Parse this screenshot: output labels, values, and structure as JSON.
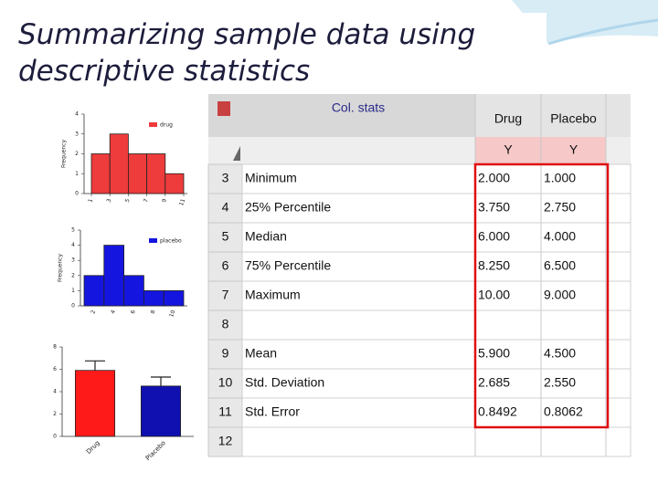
{
  "title": "Summarizing sample data using descriptive statistics",
  "charts": [
    {
      "type": "histogram",
      "y_label": "Frequency",
      "legend": "drug",
      "color": "#ee3b3b",
      "bins": [
        1,
        3,
        5,
        7,
        9,
        11
      ],
      "values": [
        2,
        3,
        2,
        2,
        1
      ],
      "xticks": [
        1,
        3,
        5,
        7,
        9,
        11
      ],
      "xlim": [
        1,
        11
      ],
      "ylim": [
        0,
        4
      ],
      "yticks": [
        0,
        1,
        2,
        3,
        4
      ]
    },
    {
      "type": "bar",
      "y_label": "Frequency",
      "legend": "placebo",
      "color": "#1515e0",
      "categories": [
        "2",
        "4",
        "6",
        "8",
        "10"
      ],
      "values": [
        2,
        4,
        2,
        1,
        1
      ],
      "ylim": [
        0,
        5
      ],
      "yticks": [
        0,
        1,
        2,
        3,
        4,
        5
      ]
    },
    {
      "type": "errorbar",
      "categories": [
        "Drug",
        "Placebo"
      ],
      "colors": [
        "#ff1a1a",
        "#1010b0"
      ],
      "values": [
        5.9,
        4.5
      ],
      "errors": [
        0.8492,
        0.8062
      ],
      "ylim": [
        0,
        8
      ],
      "yticks": [
        0,
        2,
        4,
        6,
        8
      ]
    }
  ],
  "table": {
    "title": "Col. stats",
    "columns": [
      "Drug",
      "Placebo"
    ],
    "subheaders": [
      "Y",
      "Y"
    ],
    "rows": [
      {
        "number": "3",
        "label": "Minimum",
        "drug": "2.000",
        "placebo": "1.000"
      },
      {
        "number": "4",
        "label": "25% Percentile",
        "drug": "3.750",
        "placebo": "2.750"
      },
      {
        "number": "5",
        "label": "Median",
        "drug": "6.000",
        "placebo": "4.000"
      },
      {
        "number": "6",
        "label": "75% Percentile",
        "drug": "8.250",
        "placebo": "6.500"
      },
      {
        "number": "7",
        "label": "Maximum",
        "drug": "10.00",
        "placebo": "9.000"
      },
      {
        "number": "8"
      },
      {
        "number": "9",
        "label": "Mean",
        "drug": "5.900",
        "placebo": "4.500"
      },
      {
        "number": "10",
        "label": "Std. Deviation",
        "drug": "2.685",
        "placebo": "2.550"
      },
      {
        "number": "11",
        "label": "Std. Error",
        "drug": "0.8492",
        "placebo": "0.8062"
      },
      {
        "number": "12"
      }
    ]
  }
}
